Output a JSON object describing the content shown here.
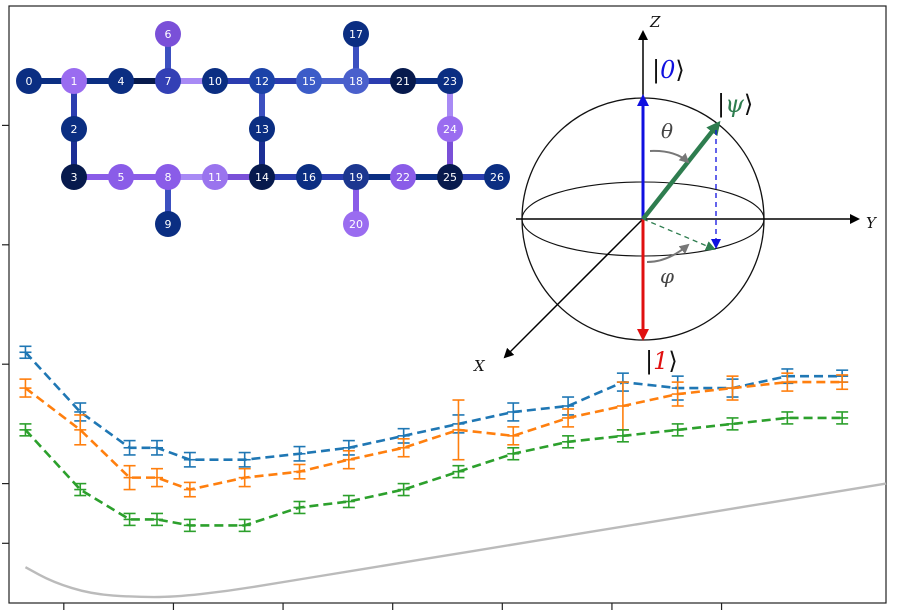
{
  "chart_data": {
    "type": "line",
    "title": "",
    "xlabel": "",
    "ylabel": "",
    "grid": false,
    "legend": "none",
    "xlim": [
      0,
      16
    ],
    "ylim": [
      0,
      10
    ],
    "x_ticks": [
      1,
      3,
      5,
      7,
      9,
      11,
      13
    ],
    "y_ticks": [
      1,
      2,
      4,
      6,
      8
    ],
    "series": [
      {
        "color": "#1f77b4",
        "style": "dashed",
        "x": [
          0.3,
          1.3,
          2.2,
          2.7,
          3.3,
          4.3,
          5.3,
          6.2,
          7.2,
          8.2,
          9.2,
          10.2,
          11.2,
          12.2,
          13.2,
          14.2,
          15.2
        ],
        "y": [
          4.2,
          3.2,
          2.6,
          2.6,
          2.4,
          2.4,
          2.5,
          2.6,
          2.8,
          3.0,
          3.2,
          3.3,
          3.7,
          3.6,
          3.6,
          3.8,
          3.8
        ],
        "err": [
          0.1,
          0.15,
          0.12,
          0.12,
          0.12,
          0.12,
          0.12,
          0.12,
          0.12,
          0.15,
          0.15,
          0.15,
          0.15,
          0.2,
          0.15,
          0.12,
          0.1
        ]
      },
      {
        "color": "#ff7f0e",
        "style": "dashed",
        "x": [
          0.3,
          1.3,
          2.2,
          2.7,
          3.3,
          4.3,
          5.3,
          6.2,
          7.2,
          8.2,
          9.2,
          10.2,
          11.2,
          12.2,
          13.2,
          14.2,
          15.2
        ],
        "y": [
          3.6,
          2.9,
          2.1,
          2.1,
          1.9,
          2.1,
          2.2,
          2.4,
          2.6,
          2.9,
          2.8,
          3.1,
          3.3,
          3.5,
          3.6,
          3.7,
          3.7
        ],
        "err": [
          0.15,
          0.25,
          0.2,
          0.15,
          0.12,
          0.15,
          0.12,
          0.15,
          0.15,
          0.5,
          0.15,
          0.15,
          0.4,
          0.2,
          0.2,
          0.15,
          0.12
        ]
      },
      {
        "color": "#2ca02c",
        "style": "dashed",
        "x": [
          0.3,
          1.3,
          2.2,
          2.7,
          3.3,
          4.3,
          5.3,
          6.2,
          7.2,
          8.2,
          9.2,
          10.2,
          11.2,
          12.2,
          13.2,
          14.2,
          15.2
        ],
        "y": [
          2.9,
          1.9,
          1.4,
          1.4,
          1.3,
          1.3,
          1.6,
          1.7,
          1.9,
          2.2,
          2.5,
          2.7,
          2.8,
          2.9,
          3.0,
          3.1,
          3.1
        ],
        "err": [
          0.1,
          0.1,
          0.1,
          0.1,
          0.1,
          0.1,
          0.1,
          0.1,
          0.1,
          0.1,
          0.1,
          0.1,
          0.1,
          0.1,
          0.1,
          0.1,
          0.1
        ]
      },
      {
        "color": "#bbbbbb",
        "style": "solid",
        "x": [
          0.3,
          0.8,
          1.5,
          2.3,
          3.0,
          4.0,
          5.0,
          6.0,
          7.0,
          8.0,
          9.0,
          10.0,
          11.0,
          12.0,
          13.0,
          14.0,
          15.0,
          16.0
        ],
        "y": [
          0.6,
          0.35,
          0.15,
          0.1,
          0.1,
          0.2,
          0.35,
          0.5,
          0.65,
          0.8,
          0.95,
          1.1,
          1.25,
          1.4,
          1.55,
          1.7,
          1.85,
          2.0
        ]
      }
    ]
  },
  "lattice": {
    "nodes": [
      {
        "id": "0",
        "color": "#0b2e82"
      },
      {
        "id": "1",
        "color": "#9a6cf0"
      },
      {
        "id": "2",
        "color": "#0b2e82"
      },
      {
        "id": "3",
        "color": "#071a4d"
      },
      {
        "id": "4",
        "color": "#0b2e82"
      },
      {
        "id": "5",
        "color": "#8a5ce8"
      },
      {
        "id": "6",
        "color": "#7a50d8"
      },
      {
        "id": "7",
        "color": "#3340b5"
      },
      {
        "id": "8",
        "color": "#8a5ce8"
      },
      {
        "id": "9",
        "color": "#0b2e82"
      },
      {
        "id": "10",
        "color": "#0b2e82"
      },
      {
        "id": "11",
        "color": "#9a74ee"
      },
      {
        "id": "12",
        "color": "#1c43a8"
      },
      {
        "id": "13",
        "color": "#0b2e82"
      },
      {
        "id": "14",
        "color": "#071a4d"
      },
      {
        "id": "15",
        "color": "#3c5cc8"
      },
      {
        "id": "16",
        "color": "#0b2e82"
      },
      {
        "id": "17",
        "color": "#0b2e82"
      },
      {
        "id": "18",
        "color": "#4a60cc"
      },
      {
        "id": "19",
        "color": "#1c3790"
      },
      {
        "id": "20",
        "color": "#9a6cf0"
      },
      {
        "id": "21",
        "color": "#071a4d"
      },
      {
        "id": "22",
        "color": "#8a5ce8"
      },
      {
        "id": "23",
        "color": "#0b2e82"
      },
      {
        "id": "24",
        "color": "#9a6cf0"
      },
      {
        "id": "25",
        "color": "#071a4d"
      },
      {
        "id": "26",
        "color": "#0b2e82"
      }
    ],
    "edges": [
      [
        "0",
        "1",
        "#0b2e82"
      ],
      [
        "1",
        "4",
        "#0b2e82"
      ],
      [
        "4",
        "7",
        "#071a4d"
      ],
      [
        "7",
        "10",
        "#a88af5"
      ],
      [
        "10",
        "12",
        "#2b3db0"
      ],
      [
        "12",
        "15",
        "#2b3db0"
      ],
      [
        "15",
        "18",
        "#4a60cc"
      ],
      [
        "18",
        "21",
        "#2b3db0"
      ],
      [
        "21",
        "23",
        "#0b2e82"
      ],
      [
        "1",
        "2",
        "#2b3db0"
      ],
      [
        "2",
        "3",
        "#1c2f95"
      ],
      [
        "3",
        "5",
        "#8a5ce8"
      ],
      [
        "5",
        "8",
        "#8a5ce8"
      ],
      [
        "8",
        "11",
        "#a88af5"
      ],
      [
        "11",
        "14",
        "#7a50d8"
      ],
      [
        "14",
        "16",
        "#2b3db0"
      ],
      [
        "16",
        "19",
        "#2b3db0"
      ],
      [
        "19",
        "22",
        "#0b2e82"
      ],
      [
        "22",
        "25",
        "#0b2e82"
      ],
      [
        "25",
        "26",
        "#2b3db0"
      ],
      [
        "6",
        "7",
        "#3c50c0"
      ],
      [
        "8",
        "9",
        "#3c50c0"
      ],
      [
        "12",
        "13",
        "#3c50c0"
      ],
      [
        "13",
        "14",
        "#1c2f95"
      ],
      [
        "17",
        "18",
        "#3c50c0"
      ],
      [
        "19",
        "20",
        "#8a5ce8"
      ],
      [
        "23",
        "24",
        "#a88af5"
      ],
      [
        "24",
        "25",
        "#7a50d8"
      ]
    ]
  },
  "bloch": {
    "z_label": "Z",
    "y_label": "Y",
    "x_label": "X",
    "ket0_left": "|",
    "ket0_value": "0",
    "ket0_right": "⟩",
    "ket1_left": "|",
    "ket1_value": "1",
    "ket1_right": "⟩",
    "psi_left": "|",
    "psi_value": "ψ",
    "psi_right": "⟩",
    "theta": "θ",
    "phi": "φ",
    "colors": {
      "ket0": "#1010e0",
      "ket1": "#e01010",
      "psi": "#2e7d4f",
      "angle": "#777777"
    }
  }
}
